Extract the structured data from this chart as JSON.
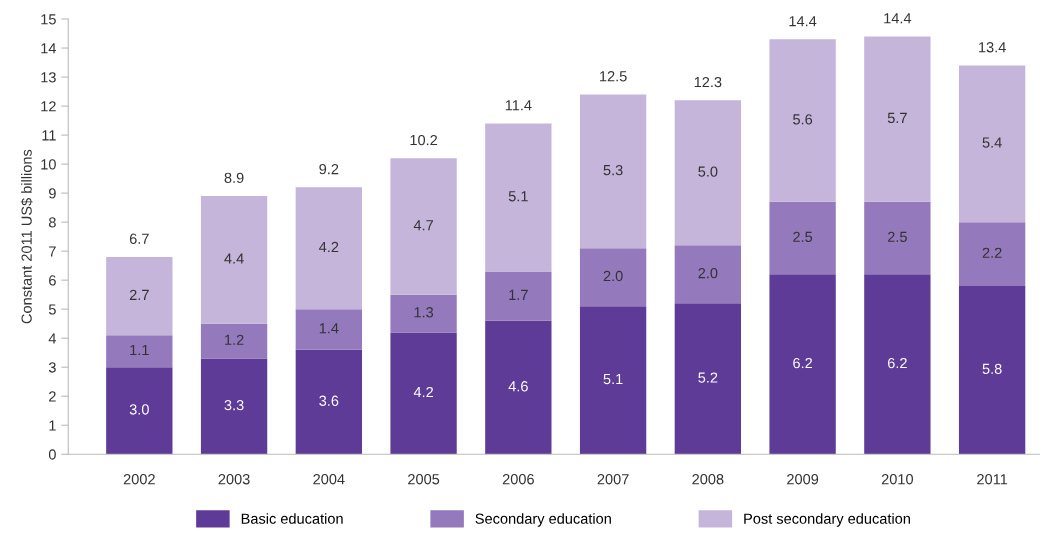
{
  "chart_data": {
    "type": "bar",
    "stacked": true,
    "ylabel": "Constant 2011 US$ billions",
    "categories": [
      "2002",
      "2003",
      "2004",
      "2005",
      "2006",
      "2007",
      "2008",
      "2009",
      "2010",
      "2011"
    ],
    "series": [
      {
        "name": "Basic education",
        "color": "#5f3b98",
        "values": [
          3.0,
          3.3,
          3.6,
          4.2,
          4.6,
          5.1,
          5.2,
          6.2,
          6.2,
          5.8
        ],
        "value_labels": [
          "3.0",
          "3.3",
          "3.6",
          "4.2",
          "4.6",
          "5.1",
          "5.2",
          "6.2",
          "6.2",
          "5.8"
        ]
      },
      {
        "name": "Secondary education",
        "color": "#9479bd",
        "values": [
          1.1,
          1.2,
          1.4,
          1.3,
          1.7,
          2.0,
          2.0,
          2.5,
          2.5,
          2.2
        ],
        "value_labels": [
          "1.1",
          "1.2",
          "1.4",
          "1.3",
          "1.7",
          "2.0",
          "2.0",
          "2.5",
          "2.5",
          "2.2"
        ]
      },
      {
        "name": "Post secondary education",
        "color": "#c5b5db",
        "values": [
          2.7,
          4.4,
          4.2,
          4.7,
          5.1,
          5.3,
          5.0,
          5.6,
          5.7,
          5.4
        ],
        "value_labels": [
          "2.7",
          "4.4",
          "4.2",
          "4.7",
          "5.1",
          "5.3",
          "5.0",
          "5.6",
          "5.7",
          "5.4"
        ]
      }
    ],
    "totals": [
      "6.7",
      "8.9",
      "9.2",
      "10.2",
      "11.4",
      "12.5",
      "12.3",
      "14.4",
      "14.4",
      "13.4"
    ],
    "ylim": [
      0,
      15
    ],
    "yticks": [
      0,
      1,
      2,
      3,
      4,
      5,
      6,
      7,
      8,
      9,
      10,
      11,
      12,
      13,
      14,
      15
    ],
    "grid": false,
    "legend": "bottom"
  }
}
